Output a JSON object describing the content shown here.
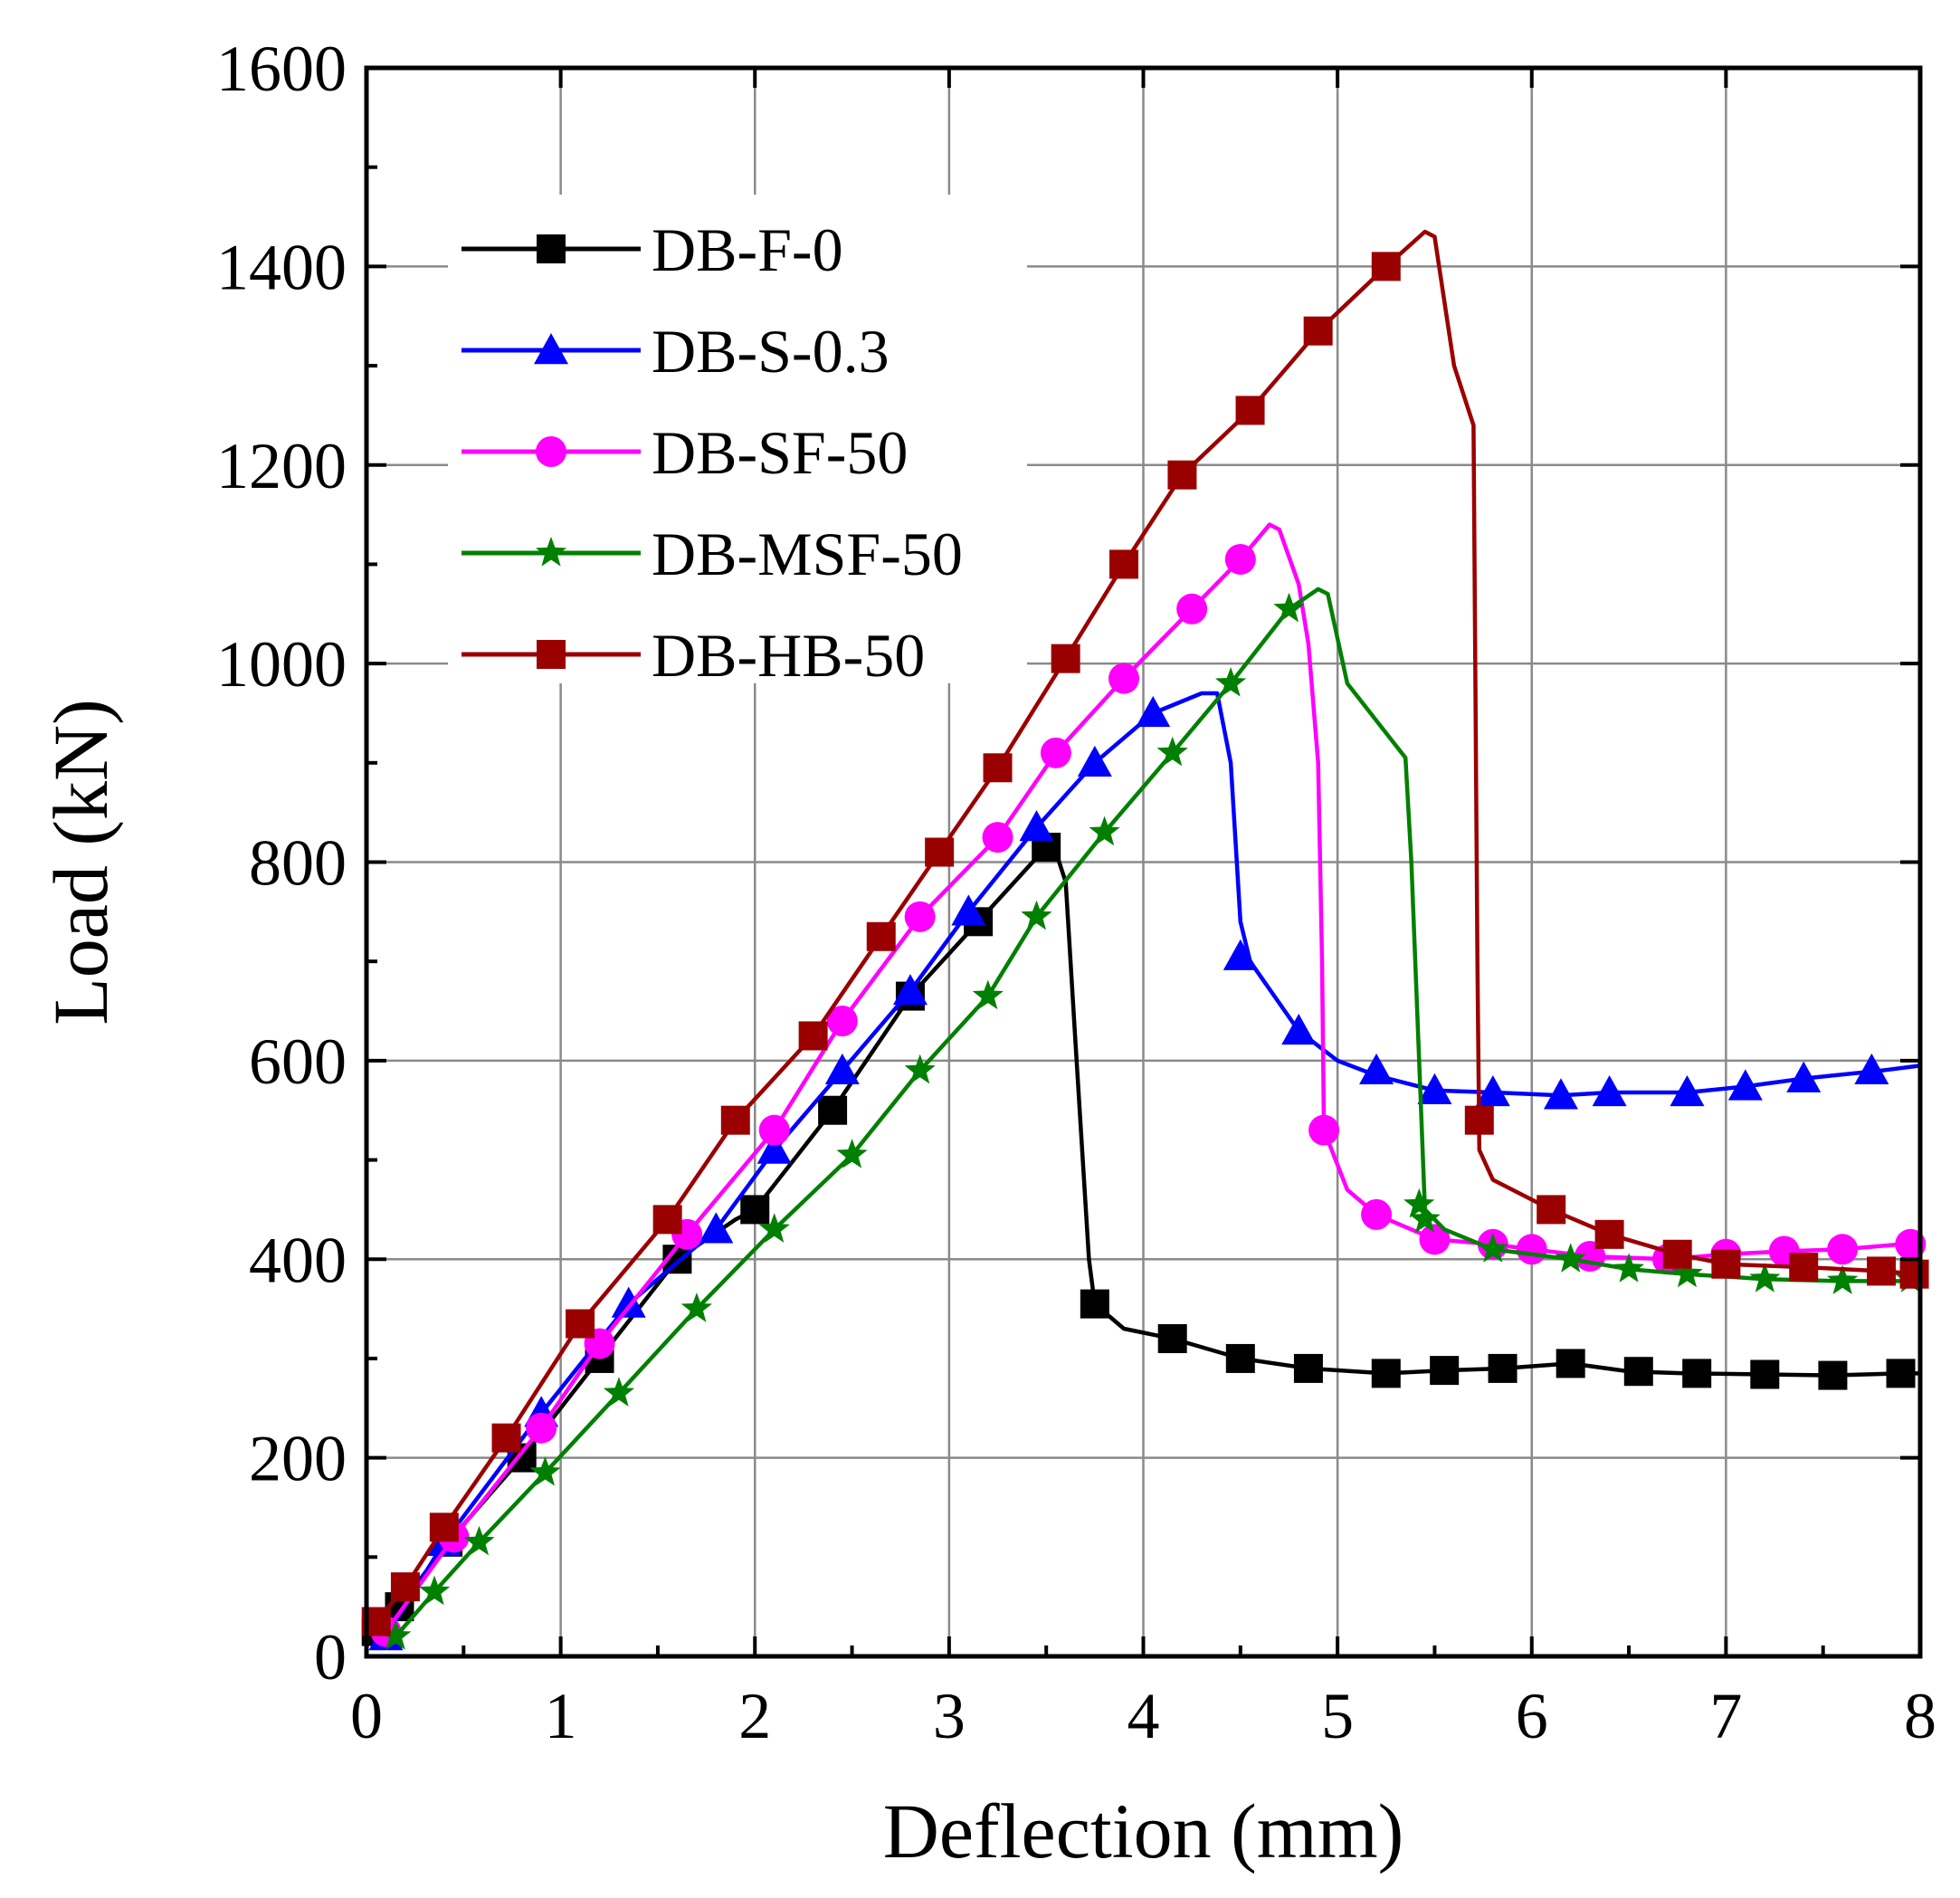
{
  "chart_data": {
    "type": "line",
    "title": "",
    "xlabel": "Deflection (mm)",
    "ylabel": "Load (kN)",
    "xlim": [
      0,
      8
    ],
    "ylim": [
      0,
      1600
    ],
    "xticks": [
      "0",
      "1",
      "2",
      "3",
      "4",
      "5",
      "6",
      "7",
      "8"
    ],
    "yticks": [
      "0",
      "200",
      "400",
      "600",
      "800",
      "1000",
      "1200",
      "1400",
      "1600"
    ],
    "grid": true,
    "legend_position": "top-left",
    "series": [
      {
        "name": "DB-F-0",
        "color": "#000000",
        "marker": "square",
        "points": [
          [
            0.05,
            25
          ],
          [
            0.17,
            50
          ],
          [
            0.42,
            115
          ],
          [
            0.8,
            200
          ],
          [
            1.2,
            300
          ],
          [
            1.6,
            400
          ],
          [
            1.9,
            440
          ],
          [
            2.0,
            450
          ],
          [
            2.4,
            550
          ],
          [
            2.8,
            665
          ],
          [
            3.15,
            740
          ],
          [
            3.5,
            815
          ],
          [
            3.55,
            810
          ],
          [
            3.6,
            780
          ],
          [
            3.65,
            620
          ],
          [
            3.72,
            400
          ],
          [
            3.75,
            355
          ],
          [
            3.9,
            330
          ],
          [
            4.15,
            320
          ],
          [
            4.5,
            300
          ],
          [
            4.85,
            290
          ],
          [
            5.25,
            285
          ],
          [
            5.55,
            288
          ],
          [
            5.85,
            290
          ],
          [
            6.2,
            295
          ],
          [
            6.5,
            287
          ],
          [
            6.8,
            285
          ],
          [
            7.2,
            284
          ],
          [
            7.55,
            283
          ],
          [
            7.9,
            285
          ],
          [
            8.0,
            285
          ]
        ],
        "marker_points": [
          [
            0.05,
            25
          ],
          [
            0.17,
            50
          ],
          [
            0.42,
            115
          ],
          [
            0.8,
            200
          ],
          [
            1.2,
            300
          ],
          [
            1.6,
            400
          ],
          [
            2.0,
            450
          ],
          [
            2.4,
            550
          ],
          [
            2.8,
            665
          ],
          [
            3.15,
            740
          ],
          [
            3.5,
            815
          ],
          [
            3.75,
            355
          ],
          [
            4.15,
            320
          ],
          [
            4.5,
            300
          ],
          [
            4.85,
            290
          ],
          [
            5.25,
            285
          ],
          [
            5.55,
            288
          ],
          [
            5.85,
            290
          ],
          [
            6.2,
            295
          ],
          [
            6.55,
            287
          ],
          [
            6.85,
            285
          ],
          [
            7.2,
            284
          ],
          [
            7.55,
            283
          ],
          [
            7.9,
            285
          ]
        ]
      },
      {
        "name": "DB-S-0.3",
        "color": "#0000ff",
        "marker": "triangle",
        "points": [
          [
            0.1,
            20
          ],
          [
            0.4,
            115
          ],
          [
            0.9,
            245
          ],
          [
            1.35,
            355
          ],
          [
            1.8,
            430
          ],
          [
            2.1,
            510
          ],
          [
            2.45,
            590
          ],
          [
            2.8,
            670
          ],
          [
            3.1,
            750
          ],
          [
            3.45,
            835
          ],
          [
            3.75,
            900
          ],
          [
            4.05,
            950
          ],
          [
            4.3,
            970
          ],
          [
            4.38,
            970
          ],
          [
            4.45,
            900
          ],
          [
            4.5,
            740
          ],
          [
            4.55,
            700
          ],
          [
            4.8,
            630
          ],
          [
            5.0,
            600
          ],
          [
            5.2,
            585
          ],
          [
            5.5,
            570
          ],
          [
            5.8,
            568
          ],
          [
            6.15,
            565
          ],
          [
            6.4,
            568
          ],
          [
            6.8,
            568
          ],
          [
            7.1,
            574
          ],
          [
            7.4,
            582
          ],
          [
            7.8,
            590
          ],
          [
            8.0,
            595
          ]
        ],
        "marker_points": [
          [
            0.1,
            20
          ],
          [
            0.4,
            115
          ],
          [
            0.9,
            245
          ],
          [
            1.35,
            355
          ],
          [
            1.8,
            430
          ],
          [
            2.1,
            510
          ],
          [
            2.45,
            590
          ],
          [
            2.8,
            670
          ],
          [
            3.1,
            750
          ],
          [
            3.45,
            835
          ],
          [
            3.75,
            900
          ],
          [
            4.05,
            950
          ],
          [
            4.5,
            705
          ],
          [
            4.8,
            630
          ],
          [
            5.2,
            590
          ],
          [
            5.5,
            570
          ],
          [
            5.8,
            568
          ],
          [
            6.15,
            565
          ],
          [
            6.4,
            568
          ],
          [
            6.8,
            568
          ],
          [
            7.1,
            574
          ],
          [
            7.4,
            582
          ],
          [
            7.75,
            590
          ]
        ]
      },
      {
        "name": "DB-SF-50",
        "color": "#ff00ff",
        "marker": "circle",
        "points": [
          [
            0.1,
            25
          ],
          [
            0.45,
            120
          ],
          [
            0.9,
            230
          ],
          [
            1.2,
            315
          ],
          [
            1.65,
            425
          ],
          [
            2.1,
            530
          ],
          [
            2.45,
            640
          ],
          [
            2.85,
            745
          ],
          [
            3.25,
            825
          ],
          [
            3.55,
            910
          ],
          [
            3.9,
            985
          ],
          [
            4.25,
            1055
          ],
          [
            4.5,
            1105
          ],
          [
            4.65,
            1140
          ],
          [
            4.7,
            1135
          ],
          [
            4.8,
            1080
          ],
          [
            4.85,
            1020
          ],
          [
            4.9,
            900
          ],
          [
            4.92,
            700
          ],
          [
            4.93,
            530
          ],
          [
            5.05,
            470
          ],
          [
            5.2,
            445
          ],
          [
            5.5,
            420
          ],
          [
            5.8,
            415
          ],
          [
            6.0,
            410
          ],
          [
            6.3,
            403
          ],
          [
            6.7,
            400
          ],
          [
            7.0,
            405
          ],
          [
            7.3,
            408
          ],
          [
            7.6,
            410
          ],
          [
            7.9,
            415
          ],
          [
            8.0,
            415
          ]
        ],
        "marker_points": [
          [
            0.1,
            25
          ],
          [
            0.45,
            120
          ],
          [
            0.9,
            230
          ],
          [
            1.2,
            315
          ],
          [
            1.65,
            425
          ],
          [
            2.1,
            530
          ],
          [
            2.45,
            640
          ],
          [
            2.85,
            745
          ],
          [
            3.25,
            825
          ],
          [
            3.55,
            910
          ],
          [
            3.9,
            985
          ],
          [
            4.25,
            1055
          ],
          [
            4.5,
            1105
          ],
          [
            4.93,
            530
          ],
          [
            5.2,
            445
          ],
          [
            5.5,
            420
          ],
          [
            5.8,
            415
          ],
          [
            6.0,
            410
          ],
          [
            6.3,
            403
          ],
          [
            6.7,
            400
          ],
          [
            7.0,
            405
          ],
          [
            7.3,
            408
          ],
          [
            7.6,
            410
          ],
          [
            7.95,
            415
          ]
        ]
      },
      {
        "name": "DB-MSF-50",
        "color": "#008000",
        "marker": "star",
        "points": [
          [
            0.15,
            20
          ],
          [
            0.35,
            65
          ],
          [
            0.58,
            115
          ],
          [
            0.92,
            185
          ],
          [
            1.3,
            265
          ],
          [
            1.7,
            350
          ],
          [
            2.1,
            430
          ],
          [
            2.5,
            505
          ],
          [
            2.85,
            590
          ],
          [
            3.2,
            665
          ],
          [
            3.45,
            745
          ],
          [
            3.8,
            830
          ],
          [
            4.15,
            910
          ],
          [
            4.45,
            980
          ],
          [
            4.75,
            1055
          ],
          [
            4.9,
            1075
          ],
          [
            4.95,
            1070
          ],
          [
            5.05,
            980
          ],
          [
            5.35,
            905
          ],
          [
            5.38,
            800
          ],
          [
            5.42,
            600
          ],
          [
            5.45,
            450
          ],
          [
            5.55,
            430
          ],
          [
            5.8,
            410
          ],
          [
            6.2,
            400
          ],
          [
            6.5,
            390
          ],
          [
            6.8,
            385
          ],
          [
            7.2,
            380
          ],
          [
            7.6,
            378
          ],
          [
            8.0,
            378
          ]
        ],
        "marker_points": [
          [
            0.15,
            20
          ],
          [
            0.35,
            65
          ],
          [
            0.58,
            115
          ],
          [
            0.92,
            185
          ],
          [
            1.3,
            265
          ],
          [
            1.7,
            350
          ],
          [
            2.1,
            430
          ],
          [
            2.5,
            505
          ],
          [
            2.85,
            590
          ],
          [
            3.2,
            665
          ],
          [
            3.45,
            745
          ],
          [
            3.8,
            830
          ],
          [
            4.15,
            910
          ],
          [
            4.45,
            980
          ],
          [
            4.75,
            1055
          ],
          [
            5.42,
            455
          ],
          [
            5.45,
            440
          ],
          [
            5.8,
            410
          ],
          [
            6.2,
            400
          ],
          [
            6.5,
            390
          ],
          [
            6.8,
            385
          ],
          [
            7.2,
            380
          ],
          [
            7.6,
            378
          ],
          [
            7.95,
            380
          ]
        ]
      },
      {
        "name": "DB-HB-50",
        "color": "#9b0000",
        "marker": "square",
        "points": [
          [
            0.05,
            35
          ],
          [
            0.2,
            70
          ],
          [
            0.4,
            130
          ],
          [
            0.72,
            220
          ],
          [
            1.1,
            335
          ],
          [
            1.55,
            440
          ],
          [
            1.9,
            540
          ],
          [
            2.3,
            625
          ],
          [
            2.65,
            725
          ],
          [
            2.95,
            810
          ],
          [
            3.25,
            895
          ],
          [
            3.6,
            1005
          ],
          [
            3.9,
            1100
          ],
          [
            4.2,
            1190
          ],
          [
            4.55,
            1255
          ],
          [
            4.9,
            1335
          ],
          [
            5.25,
            1400
          ],
          [
            5.45,
            1435
          ],
          [
            5.5,
            1430
          ],
          [
            5.6,
            1300
          ],
          [
            5.7,
            1240
          ],
          [
            5.72,
            700
          ],
          [
            5.73,
            510
          ],
          [
            5.8,
            480
          ],
          [
            6.1,
            450
          ],
          [
            6.4,
            425
          ],
          [
            6.75,
            405
          ],
          [
            7.0,
            395
          ],
          [
            7.4,
            392
          ],
          [
            7.8,
            388
          ],
          [
            8.0,
            385
          ]
        ],
        "marker_points": [
          [
            0.05,
            35
          ],
          [
            0.2,
            70
          ],
          [
            0.4,
            130
          ],
          [
            0.72,
            220
          ],
          [
            1.1,
            335
          ],
          [
            1.55,
            440
          ],
          [
            1.9,
            540
          ],
          [
            2.3,
            625
          ],
          [
            2.65,
            725
          ],
          [
            2.95,
            810
          ],
          [
            3.25,
            895
          ],
          [
            3.6,
            1005
          ],
          [
            3.9,
            1100
          ],
          [
            4.2,
            1190
          ],
          [
            4.55,
            1255
          ],
          [
            4.9,
            1335
          ],
          [
            5.25,
            1400
          ],
          [
            5.73,
            540
          ],
          [
            6.1,
            450
          ],
          [
            6.4,
            425
          ],
          [
            6.75,
            405
          ],
          [
            7.0,
            395
          ],
          [
            7.4,
            392
          ],
          [
            7.8,
            388
          ],
          [
            7.97,
            385
          ]
        ]
      }
    ]
  }
}
